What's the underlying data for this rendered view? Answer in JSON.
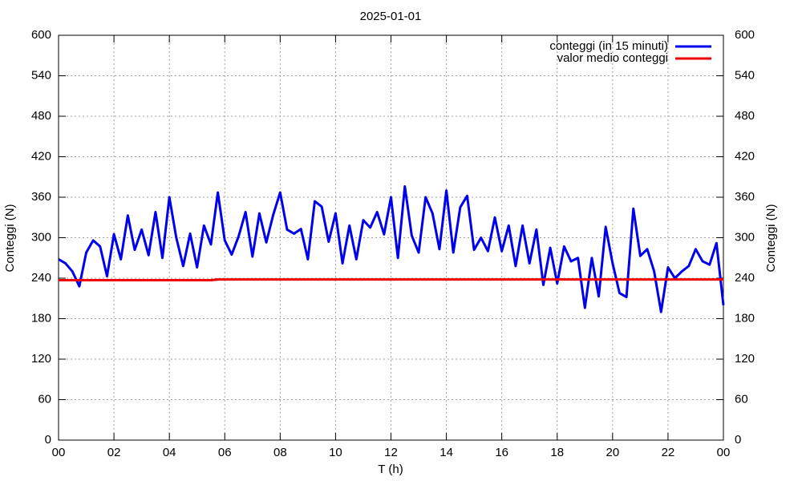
{
  "chart_data": {
    "type": "line",
    "title": "2025-01-01",
    "x_label": "T (h)",
    "y_label": "Conteggi (N)",
    "y2_label": "Conteggi (N)",
    "x": [
      0,
      0.25,
      0.5,
      0.75,
      1,
      1.25,
      1.5,
      1.75,
      2,
      2.25,
      2.5,
      2.75,
      3,
      3.25,
      3.5,
      3.75,
      4,
      4.25,
      4.5,
      4.75,
      5,
      5.25,
      5.5,
      5.75,
      6,
      6.25,
      6.5,
      6.75,
      7,
      7.25,
      7.5,
      7.75,
      8,
      8.25,
      8.5,
      8.75,
      9,
      9.25,
      9.5,
      9.75,
      10,
      10.25,
      10.5,
      10.75,
      11,
      11.25,
      11.5,
      11.75,
      12,
      12.25,
      12.5,
      12.75,
      13,
      13.25,
      13.5,
      13.75,
      14,
      14.25,
      14.5,
      14.75,
      15,
      15.25,
      15.5,
      15.75,
      16,
      16.25,
      16.5,
      16.75,
      17,
      17.25,
      17.5,
      17.75,
      18,
      18.25,
      18.5,
      18.75,
      19,
      19.25,
      19.5,
      19.75,
      20,
      20.25,
      20.5,
      20.75,
      21,
      21.25,
      21.5,
      21.75,
      22,
      22.25,
      22.5,
      22.75,
      23,
      23.25,
      23.5,
      23.75,
      24
    ],
    "series": [
      {
        "name": "conteggi (in 15 minuti)",
        "color": "#0000ee",
        "values": [
          268,
          262,
          250,
          228,
          278,
          296,
          287,
          243,
          305,
          268,
          333,
          282,
          312,
          274,
          338,
          270,
          360,
          300,
          258,
          306,
          256,
          318,
          290,
          367,
          296,
          275,
          302,
          338,
          272,
          336,
          293,
          334,
          367,
          312,
          306,
          313,
          268,
          354,
          346,
          294,
          336,
          262,
          318,
          268,
          326,
          315,
          338,
          305,
          360,
          270,
          376,
          303,
          278,
          360,
          336,
          283,
          370,
          278,
          345,
          362,
          282,
          300,
          280,
          330,
          280,
          318,
          258,
          318,
          262,
          312,
          230,
          285,
          232,
          287,
          265,
          270,
          196,
          270,
          213,
          316,
          262,
          218,
          212,
          343,
          273,
          283,
          250,
          190,
          256,
          240,
          250,
          258,
          283,
          265,
          260,
          292,
          200
        ]
      },
      {
        "name": "valor medio conteggi",
        "color": "#ee0000",
        "values": [
          237,
          237,
          237,
          237,
          237,
          237,
          237,
          237,
          237,
          237,
          237,
          237,
          237,
          237,
          237,
          237,
          237,
          237,
          237,
          237,
          237,
          237,
          237,
          238,
          238,
          238,
          238,
          238,
          238,
          238,
          238,
          238,
          238,
          238,
          238,
          238,
          238,
          238,
          238,
          238,
          238,
          238,
          238,
          238,
          238,
          238,
          238,
          238,
          238,
          238,
          238,
          238,
          238,
          238,
          238,
          238,
          238,
          238,
          238,
          238,
          238,
          238,
          238,
          238,
          238,
          238,
          238,
          238,
          238,
          238,
          238,
          238,
          238,
          238,
          238,
          238,
          238,
          238,
          238,
          238,
          238,
          238,
          238,
          238,
          238,
          238,
          238,
          238,
          238,
          238,
          238,
          238,
          238,
          238,
          238,
          238,
          238
        ]
      }
    ],
    "xlim": [
      0,
      24
    ],
    "xticks": [
      {
        "value": 0,
        "label": "00"
      },
      {
        "value": 2,
        "label": "02"
      },
      {
        "value": 4,
        "label": "04"
      },
      {
        "value": 6,
        "label": "06"
      },
      {
        "value": 8,
        "label": "08"
      },
      10,
      12,
      14,
      16,
      18,
      20,
      22,
      {
        "value": 24,
        "label": "00"
      }
    ],
    "ylim": [
      0,
      600
    ],
    "yticks": [
      0,
      60,
      120,
      180,
      240,
      300,
      360,
      420,
      480,
      540,
      600
    ],
    "y2lim": [
      0,
      600
    ],
    "y2ticks": [
      0,
      60,
      120,
      180,
      240,
      300,
      360,
      420,
      480,
      540,
      600
    ],
    "grid": true,
    "legend": "top-right"
  }
}
